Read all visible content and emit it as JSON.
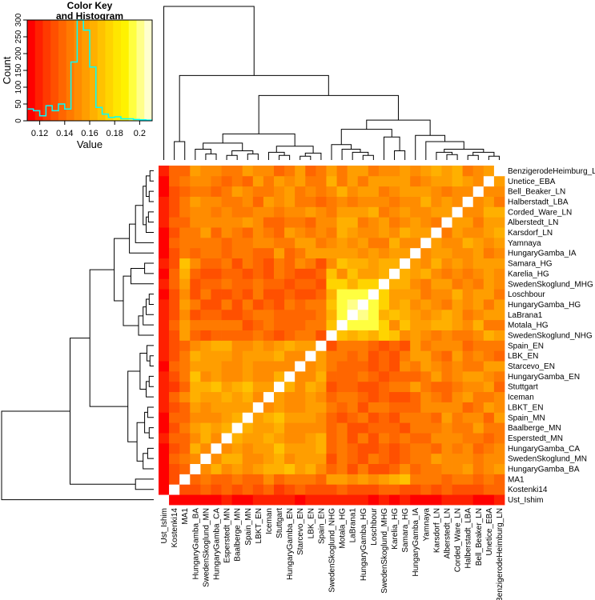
{
  "chart_data": {
    "type": "heatmap",
    "title": "",
    "labels": [
      "Ust_Ishim",
      "Kostenki14",
      "MA1",
      "HungaryGamba_BA",
      "SwedenSkoglund_MN",
      "HungaryGamba_CA",
      "Esperstedt_MN",
      "Baalberge_MN",
      "Spain_MN",
      "LBKT_EN",
      "Iceman",
      "Stuttgart",
      "HungaryGamba_EN",
      "Starcevo_EN",
      "LBK_EN",
      "Spain_EN",
      "SwedenSkoglund_NHG",
      "Motala_HG",
      "LaBrana1",
      "HungaryGamba_HG",
      "Loschbour",
      "SwedenSkoglund_MHG",
      "Karelia_HG",
      "Samara_HG",
      "HungaryGamba_IA",
      "Yamnaya",
      "Karsdorf_LN",
      "Alberstedt_LN",
      "Corded_Ware_LN",
      "Halberstadt_LBA",
      "Bell_Beaker_LN",
      "Unetice_EBA",
      "BenzigerodeHeimburg_LN"
    ],
    "groups": [
      0,
      1,
      2,
      3,
      3,
      3,
      3,
      3,
      3,
      3,
      3,
      3,
      3,
      3,
      3,
      3,
      4,
      4,
      4,
      4,
      4,
      4,
      5,
      5,
      6,
      6,
      6,
      6,
      6,
      6,
      6,
      6,
      6
    ],
    "value_range": [
      0.11,
      0.21
    ],
    "color_key": {
      "title_line1": "Color Key",
      "title_line2": "and Histogram",
      "xlabel": "Value",
      "ylabel": "Count",
      "x_ticks": [
        "0.12",
        "0.14",
        "0.16",
        "0.18",
        "0.2"
      ],
      "x_tick_values": [
        0.12,
        0.14,
        0.16,
        0.18,
        0.2
      ],
      "y_ticks": [
        "0",
        "50",
        "100",
        "150",
        "200",
        "250",
        "300"
      ],
      "y_tick_values": [
        0,
        50,
        100,
        150,
        200,
        250,
        300
      ],
      "ylim": [
        0,
        300
      ],
      "colors": [
        "#ff0000",
        "#ff2000",
        "#ff3a00",
        "#ff5000",
        "#ff6600",
        "#ff7a00",
        "#ff8c00",
        "#ff9e00",
        "#ffb000",
        "#ffc200",
        "#ffd400",
        "#ffe600",
        "#fff200",
        "#ffff40",
        "#ffff8a",
        "#ffffcf"
      ],
      "hist_color": "#00ffff",
      "histogram": [
        {
          "x0": 0.11,
          "x1": 0.115,
          "count": 35
        },
        {
          "x0": 0.115,
          "x1": 0.12,
          "count": 30
        },
        {
          "x0": 0.12,
          "x1": 0.125,
          "count": 15
        },
        {
          "x0": 0.125,
          "x1": 0.13,
          "count": 45
        },
        {
          "x0": 0.13,
          "x1": 0.135,
          "count": 30
        },
        {
          "x0": 0.135,
          "x1": 0.14,
          "count": 50
        },
        {
          "x0": 0.14,
          "x1": 0.145,
          "count": 35
        },
        {
          "x0": 0.145,
          "x1": 0.15,
          "count": 175
        },
        {
          "x0": 0.15,
          "x1": 0.155,
          "count": 300
        },
        {
          "x0": 0.155,
          "x1": 0.16,
          "count": 270
        },
        {
          "x0": 0.16,
          "x1": 0.165,
          "count": 160
        },
        {
          "x0": 0.165,
          "x1": 0.17,
          "count": 40
        },
        {
          "x0": 0.17,
          "x1": 0.175,
          "count": 20
        },
        {
          "x0": 0.175,
          "x1": 0.18,
          "count": 10
        },
        {
          "x0": 0.18,
          "x1": 0.185,
          "count": 12
        },
        {
          "x0": 0.185,
          "x1": 0.19,
          "count": 6
        },
        {
          "x0": 0.19,
          "x1": 0.195,
          "count": 6
        },
        {
          "x0": 0.195,
          "x1": 0.2,
          "count": 4
        },
        {
          "x0": 0.2,
          "x1": 0.205,
          "count": 3
        },
        {
          "x0": 0.205,
          "x1": 0.21,
          "count": 2
        }
      ]
    },
    "grid": false,
    "legend": "top-left"
  }
}
